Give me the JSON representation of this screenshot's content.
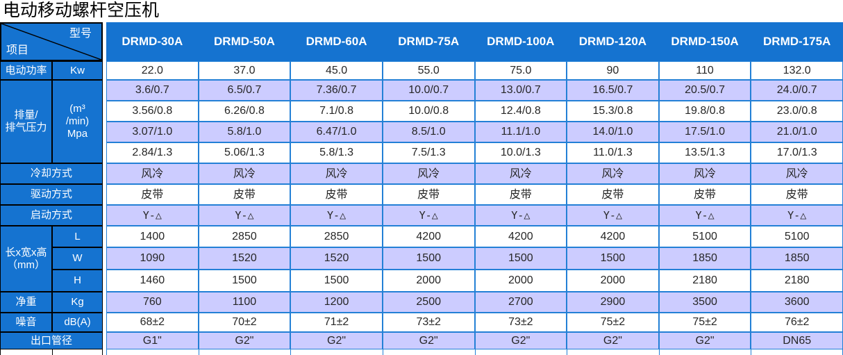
{
  "title": "电动移动螺杆空压机",
  "corner": {
    "top_label": "型号",
    "bottom_label": "项目"
  },
  "models": [
    "DRMD-30A",
    "DRMD-50A",
    "DRMD-60A",
    "DRMD-75A",
    "DRMD-100A",
    "DRMD-120A",
    "DRMD-150A",
    "DRMD-175A"
  ],
  "rows": [
    {
      "id": "power",
      "label": "电动功率",
      "unit": "Kw",
      "values": [
        "22.0",
        "37.0",
        "45.0",
        "55.0",
        "75.0",
        "90",
        "110",
        "132.0"
      ]
    },
    {
      "id": "displacement",
      "label_lines": [
        "排量/",
        "排气压力"
      ],
      "unit_lines": [
        "(m³",
        "/min)",
        "Mpa"
      ],
      "sub_rows": [
        {
          "values": [
            "3.6/0.7",
            "6.5/0.7",
            "7.36/0.7",
            "10.0/0.7",
            "13.0/0.7",
            "16.5/0.7",
            "20.5/0.7",
            "24.0/0.7"
          ]
        },
        {
          "values": [
            "3.56/0.8",
            "6.26/0.8",
            "7.1/0.8",
            "10.0/0.8",
            "12.4/0.8",
            "15.3/0.8",
            "19.8/0.8",
            "23.0/0.8"
          ]
        },
        {
          "values": [
            "3.07/1.0",
            "5.8/1.0",
            "6.47/1.0",
            "8.5/1.0",
            "11.1/1.0",
            "14.0/1.0",
            "17.5/1.0",
            "21.0/1.0"
          ]
        },
        {
          "values": [
            "2.84/1.3",
            "5.06/1.3",
            "5.8/1.3",
            "7.5/1.3",
            "10.0/1.3",
            "11.0/1.3",
            "13.5/1.3",
            "17.0/1.3"
          ]
        }
      ]
    },
    {
      "id": "cooling",
      "label": "冷却方式",
      "values": [
        "风冷",
        "风冷",
        "风冷",
        "风冷",
        "风冷",
        "风冷",
        "风冷",
        "风冷"
      ]
    },
    {
      "id": "drive",
      "label": "驱动方式",
      "values": [
        "皮带",
        "皮带",
        "皮带",
        "皮带",
        "皮带",
        "皮带",
        "皮带",
        "皮带"
      ]
    },
    {
      "id": "start",
      "label": "启动方式",
      "values": [
        "Y-△",
        "Y-△",
        "Y-△",
        "Y-△",
        "Y-△",
        "Y-△",
        "Y-△",
        "Y-△"
      ]
    },
    {
      "id": "dimensions",
      "label_lines": [
        "长x宽x高",
        "（mm）"
      ],
      "subs": [
        {
          "unit": "L",
          "values": [
            "1400",
            "2850",
            "2850",
            "4200",
            "4200",
            "4200",
            "5100",
            "5100"
          ]
        },
        {
          "unit": "W",
          "values": [
            "1090",
            "1520",
            "1520",
            "1500",
            "1500",
            "1500",
            "1850",
            "1850"
          ]
        },
        {
          "unit": "H",
          "values": [
            "1460",
            "1500",
            "1500",
            "2000",
            "2000",
            "2000",
            "2180",
            "2180"
          ]
        }
      ]
    },
    {
      "id": "weight",
      "label": "净重",
      "unit": "Kg",
      "values": [
        "760",
        "1100",
        "1200",
        "2500",
        "2700",
        "2900",
        "3500",
        "3600"
      ]
    },
    {
      "id": "noise",
      "label": "噪音",
      "unit": "dB(A)",
      "values": [
        "68±2",
        "70±2",
        "71±2",
        "73±2",
        "73±2",
        "75±2",
        "75±2",
        "76±2"
      ]
    },
    {
      "id": "outlet",
      "label": "出口管径",
      "values": [
        "G1\"",
        "G2\"",
        "G2\"",
        "G2\"",
        "G2\"",
        "G2\"",
        "G2\"",
        "DN65"
      ]
    }
  ],
  "colors": {
    "header_blue": "#1573D0",
    "row_lavender": "#CCCCFF",
    "data_border_blue": "#2380D6",
    "label_border_black": "#000000",
    "text_dark": "#262626",
    "text_white": "#ffffff"
  }
}
